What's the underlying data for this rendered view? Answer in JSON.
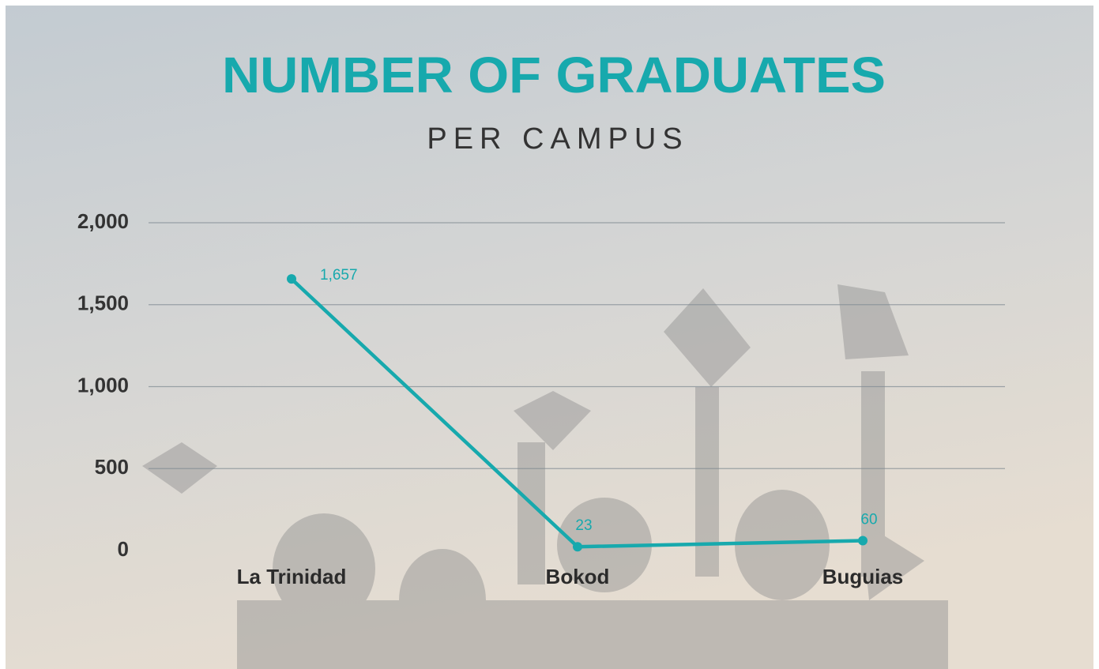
{
  "chart_data": {
    "type": "line",
    "title": "NUMBER OF GRADUATES",
    "subtitle": "PER CAMPUS",
    "categories": [
      "La Trinidad",
      "Bokod",
      "Buguias"
    ],
    "values": [
      1657,
      23,
      60
    ],
    "value_labels": [
      "1,657",
      "23",
      "60"
    ],
    "color": "#17a9ad",
    "ylim": [
      0,
      2000
    ],
    "yticks": [
      0,
      500,
      {
        "value": 1000,
        "label": "1,000"
      },
      {
        "value": 1500,
        "label": "1,500"
      },
      {
        "value": 2000,
        "label": "2,000"
      }
    ],
    "grid": true
  }
}
